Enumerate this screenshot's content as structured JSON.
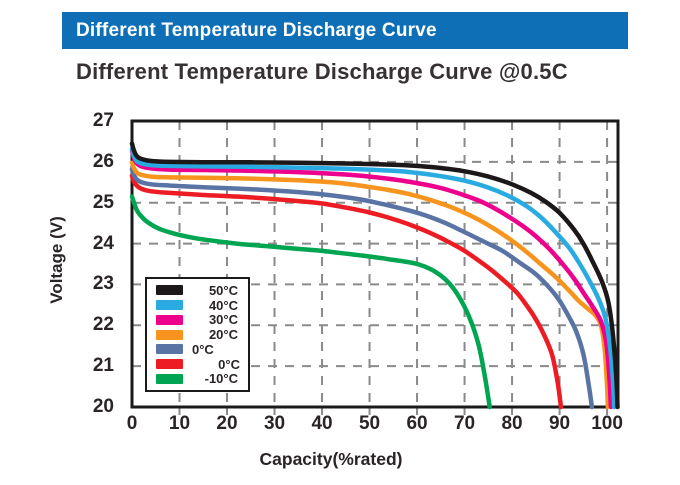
{
  "header": {
    "banner_title": "Different Temperature Discharge Curve"
  },
  "colors": {
    "banner_blue": "#0e6fb7",
    "plot_border": "#1a1a1a",
    "grid_gray": "#8a8a8a",
    "text_dark": "#2a2427"
  },
  "chart_data": {
    "type": "line",
    "title": "Different Temperature Discharge Curve @0.5C",
    "xlabel": "Capacity(%rated)",
    "ylabel": "Voltage (V)",
    "xlim": [
      0,
      102.3
    ],
    "ylim": [
      20,
      27
    ],
    "x_ticks": [
      0,
      10,
      20,
      30,
      40,
      50,
      60,
      70,
      80,
      90,
      100
    ],
    "y_ticks": [
      20,
      21,
      22,
      23,
      24,
      25,
      26,
      27
    ],
    "grid": true,
    "grid_style": "dashed",
    "legend_position": "inside lower-left",
    "series": [
      {
        "name": "50°C",
        "color": "#1c1719",
        "points": [
          [
            0,
            26.45
          ],
          [
            0.4,
            26.28
          ],
          [
            1,
            26.14
          ],
          [
            2,
            26.07
          ],
          [
            4,
            26.02
          ],
          [
            8,
            26.0
          ],
          [
            15,
            25.99
          ],
          [
            25,
            25.99
          ],
          [
            35,
            25.98
          ],
          [
            45,
            25.96
          ],
          [
            55,
            25.93
          ],
          [
            60,
            25.9
          ],
          [
            65,
            25.85
          ],
          [
            70,
            25.77
          ],
          [
            75,
            25.64
          ],
          [
            80,
            25.45
          ],
          [
            84,
            25.24
          ],
          [
            87,
            25.03
          ],
          [
            90,
            24.75
          ],
          [
            93,
            24.35
          ],
          [
            95,
            24.0
          ],
          [
            97,
            23.55
          ],
          [
            99,
            23.05
          ],
          [
            100.3,
            22.55
          ],
          [
            101.2,
            21.8
          ],
          [
            101.9,
            20.8
          ],
          [
            102.2,
            20.0
          ]
        ]
      },
      {
        "name": "40°C",
        "color": "#29abe2",
        "points": [
          [
            0,
            26.32
          ],
          [
            0.4,
            26.15
          ],
          [
            1,
            26.02
          ],
          [
            2,
            25.96
          ],
          [
            4,
            25.92
          ],
          [
            8,
            25.9
          ],
          [
            15,
            25.89
          ],
          [
            25,
            25.88
          ],
          [
            35,
            25.86
          ],
          [
            45,
            25.83
          ],
          [
            55,
            25.78
          ],
          [
            60,
            25.73
          ],
          [
            65,
            25.65
          ],
          [
            70,
            25.54
          ],
          [
            75,
            25.37
          ],
          [
            79,
            25.18
          ],
          [
            83,
            24.92
          ],
          [
            86,
            24.65
          ],
          [
            89,
            24.3
          ],
          [
            92,
            23.9
          ],
          [
            94,
            23.55
          ],
          [
            96,
            23.15
          ],
          [
            98,
            22.7
          ],
          [
            99.6,
            22.2
          ],
          [
            100.6,
            21.5
          ],
          [
            101.2,
            20.7
          ],
          [
            101.5,
            20.0
          ]
        ]
      },
      {
        "name": "30°C",
        "color": "#ec008c",
        "points": [
          [
            0,
            26.28
          ],
          [
            0.4,
            26.1
          ],
          [
            1,
            25.97
          ],
          [
            2,
            25.89
          ],
          [
            4,
            25.84
          ],
          [
            8,
            25.81
          ],
          [
            15,
            25.8
          ],
          [
            25,
            25.78
          ],
          [
            35,
            25.75
          ],
          [
            45,
            25.69
          ],
          [
            50,
            25.64
          ],
          [
            55,
            25.57
          ],
          [
            60,
            25.48
          ],
          [
            65,
            25.36
          ],
          [
            70,
            25.18
          ],
          [
            74,
            25.0
          ],
          [
            78,
            24.75
          ],
          [
            82,
            24.45
          ],
          [
            85,
            24.18
          ],
          [
            88,
            23.85
          ],
          [
            91,
            23.45
          ],
          [
            93,
            23.15
          ],
          [
            95,
            22.8
          ],
          [
            97,
            22.45
          ],
          [
            98.7,
            22.1
          ],
          [
            99.8,
            21.6
          ],
          [
            100.5,
            20.7
          ],
          [
            100.8,
            20.0
          ]
        ]
      },
      {
        "name": "20°C",
        "color": "#f7941d",
        "points": [
          [
            0,
            25.98
          ],
          [
            0.4,
            25.85
          ],
          [
            1,
            25.74
          ],
          [
            2,
            25.68
          ],
          [
            4,
            25.64
          ],
          [
            8,
            25.62
          ],
          [
            15,
            25.61
          ],
          [
            25,
            25.59
          ],
          [
            35,
            25.55
          ],
          [
            42,
            25.5
          ],
          [
            48,
            25.42
          ],
          [
            53,
            25.33
          ],
          [
            58,
            25.22
          ],
          [
            63,
            25.06
          ],
          [
            67,
            24.9
          ],
          [
            71,
            24.7
          ],
          [
            75,
            24.45
          ],
          [
            79,
            24.15
          ],
          [
            83,
            23.8
          ],
          [
            86,
            23.5
          ],
          [
            89,
            23.2
          ],
          [
            92,
            22.85
          ],
          [
            94,
            22.6
          ],
          [
            96,
            22.4
          ],
          [
            97.5,
            22.25
          ],
          [
            98.7,
            22.0
          ],
          [
            99.5,
            21.4
          ],
          [
            100,
            20.5
          ],
          [
            100.15,
            20.0
          ]
        ]
      },
      {
        "name": "0°C",
        "color": "#5a73a5",
        "points": [
          [
            0,
            25.82
          ],
          [
            0.4,
            25.68
          ],
          [
            1,
            25.57
          ],
          [
            2,
            25.5
          ],
          [
            4,
            25.45
          ],
          [
            8,
            25.42
          ],
          [
            15,
            25.38
          ],
          [
            25,
            25.33
          ],
          [
            35,
            25.26
          ],
          [
            42,
            25.18
          ],
          [
            48,
            25.08
          ],
          [
            53,
            24.96
          ],
          [
            58,
            24.82
          ],
          [
            62,
            24.68
          ],
          [
            66,
            24.5
          ],
          [
            70,
            24.28
          ],
          [
            74,
            24.05
          ],
          [
            78,
            23.82
          ],
          [
            82,
            23.5
          ],
          [
            85,
            23.25
          ],
          [
            88,
            22.9
          ],
          [
            90,
            22.6
          ],
          [
            92,
            22.2
          ],
          [
            93.5,
            21.85
          ],
          [
            95,
            21.3
          ],
          [
            96.2,
            20.5
          ],
          [
            96.8,
            20.0
          ]
        ]
      },
      {
        "name": "0°C",
        "color": "#ed1c24",
        "points": [
          [
            0,
            25.66
          ],
          [
            0.4,
            25.52
          ],
          [
            1,
            25.42
          ],
          [
            2,
            25.34
          ],
          [
            4,
            25.28
          ],
          [
            8,
            25.24
          ],
          [
            15,
            25.19
          ],
          [
            25,
            25.13
          ],
          [
            33,
            25.06
          ],
          [
            40,
            24.98
          ],
          [
            45,
            24.88
          ],
          [
            50,
            24.76
          ],
          [
            55,
            24.6
          ],
          [
            59,
            24.44
          ],
          [
            63,
            24.25
          ],
          [
            67,
            24.02
          ],
          [
            70,
            23.82
          ],
          [
            73,
            23.58
          ],
          [
            76,
            23.32
          ],
          [
            79,
            23.02
          ],
          [
            81,
            22.8
          ],
          [
            83,
            22.5
          ],
          [
            85,
            22.15
          ],
          [
            87,
            21.7
          ],
          [
            88.5,
            21.25
          ],
          [
            89.6,
            20.6
          ],
          [
            90.3,
            20.0
          ]
        ]
      },
      {
        "name": "-10°C",
        "color": "#00a551",
        "points": [
          [
            0,
            25.15
          ],
          [
            0.5,
            24.97
          ],
          [
            1.2,
            24.78
          ],
          [
            2.5,
            24.6
          ],
          [
            4,
            24.47
          ],
          [
            6,
            24.35
          ],
          [
            9,
            24.24
          ],
          [
            13,
            24.14
          ],
          [
            17,
            24.07
          ],
          [
            22,
            24.0
          ],
          [
            28,
            23.94
          ],
          [
            34,
            23.88
          ],
          [
            40,
            23.82
          ],
          [
            46,
            23.74
          ],
          [
            51,
            23.67
          ],
          [
            55,
            23.6
          ],
          [
            58,
            23.55
          ],
          [
            60,
            23.5
          ],
          [
            62,
            23.42
          ],
          [
            64,
            23.3
          ],
          [
            66,
            23.12
          ],
          [
            68,
            22.85
          ],
          [
            70,
            22.45
          ],
          [
            71.5,
            22.05
          ],
          [
            73,
            21.5
          ],
          [
            74.2,
            20.8
          ],
          [
            75.3,
            20.0
          ]
        ]
      }
    ]
  }
}
